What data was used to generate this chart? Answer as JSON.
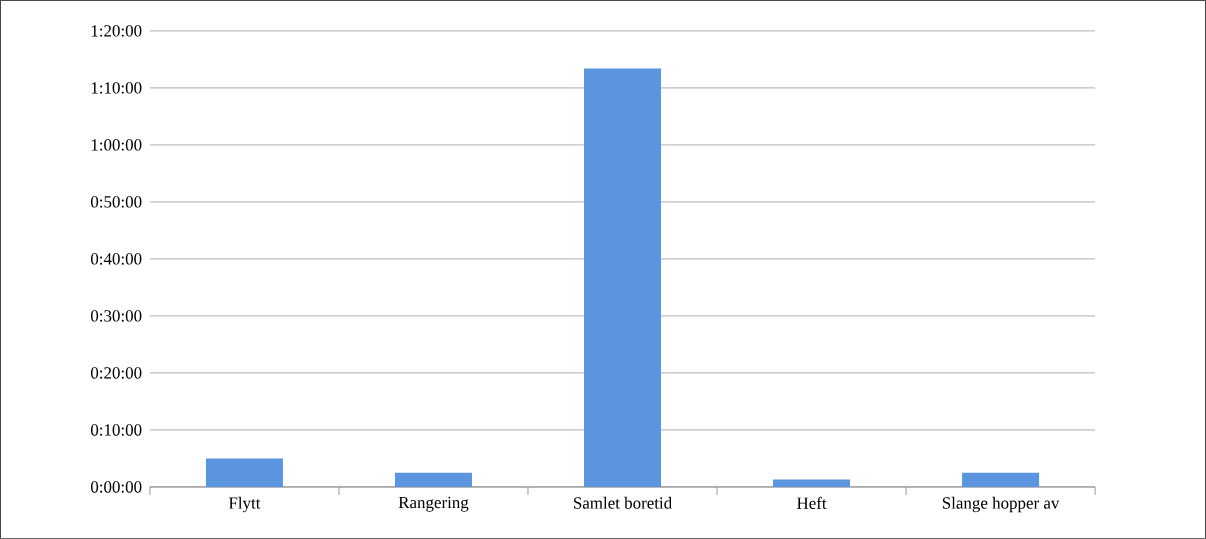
{
  "chart_data": {
    "type": "bar",
    "categories": [
      "Flytt",
      "Rangering",
      "Samlet boretid",
      "Heft",
      "Slange hopper av"
    ],
    "values": [
      5,
      2.5,
      73.4,
      1.3,
      2.5
    ],
    "color": "#5b95e0",
    "ylim": [
      0,
      80
    ],
    "yticks": [
      {
        "value": 0,
        "label": "0:00:00"
      },
      {
        "value": 10,
        "label": "0:10:00"
      },
      {
        "value": 20,
        "label": "0:20:00"
      },
      {
        "value": 30,
        "label": "0:30:00"
      },
      {
        "value": 40,
        "label": "0:40:00"
      },
      {
        "value": 50,
        "label": "0:50:00"
      },
      {
        "value": 60,
        "label": "1:00:00"
      },
      {
        "value": 70,
        "label": "1:10:00"
      },
      {
        "value": 80,
        "label": "1:20:00"
      }
    ],
    "grid": "y"
  }
}
